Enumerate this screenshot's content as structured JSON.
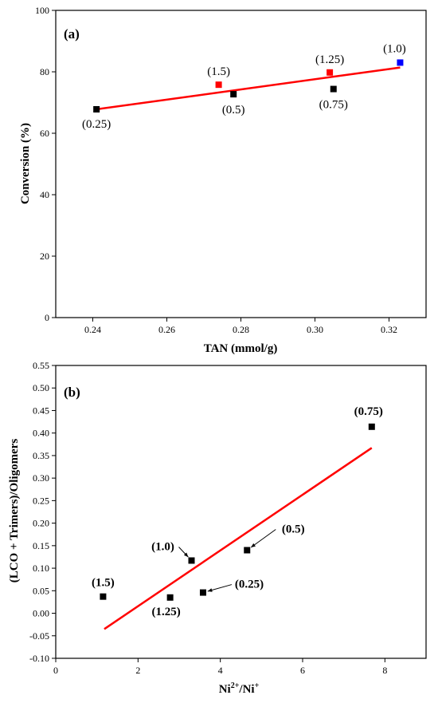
{
  "chart_data": [
    {
      "type": "scatter",
      "panel_label": "(a)",
      "xlabel": "TAN (mmol/g)",
      "ylabel": "Conversion (%)",
      "xlim": [
        0.23,
        0.33
      ],
      "ylim": [
        0,
        100
      ],
      "xticks": [
        "0.24",
        "0.26",
        "0.28",
        "0.30",
        "0.32"
      ],
      "yticks": [
        "0",
        "20",
        "40",
        "60",
        "80",
        "100"
      ],
      "points": [
        {
          "x": 0.241,
          "y": 67.8,
          "color": "#000000",
          "label": "(0.25)"
        },
        {
          "x": 0.274,
          "y": 75.8,
          "color": "#ff0000",
          "label": "(1.5)"
        },
        {
          "x": 0.278,
          "y": 72.7,
          "color": "#000000",
          "label": "(0.5)"
        },
        {
          "x": 0.304,
          "y": 79.8,
          "color": "#ff0000",
          "label": "(1.25)"
        },
        {
          "x": 0.305,
          "y": 74.4,
          "color": "#000000",
          "label": "(0.75)"
        },
        {
          "x": 0.323,
          "y": 83.0,
          "color": "#0000ff",
          "label": "(1.0)"
        }
      ],
      "fit_line": {
        "x": [
          0.241,
          0.323
        ],
        "y": [
          67.8,
          81.4
        ],
        "color": "#ff0000"
      }
    },
    {
      "type": "scatter",
      "panel_label": "(b)",
      "xlabel_main": "Ni",
      "xlabel_sup1": "2+",
      "xlabel_mid": "/Ni",
      "xlabel_sup2": "+",
      "ylabel": "(LCO + Trimers)/Oligomers",
      "xlim": [
        0,
        9
      ],
      "ylim": [
        -0.1,
        0.55
      ],
      "xticks": [
        "0",
        "2",
        "4",
        "6",
        "8"
      ],
      "yticks": [
        "-0.10",
        "-0.05",
        "0.00",
        "0.05",
        "0.10",
        "0.15",
        "0.20",
        "0.25",
        "0.30",
        "0.35",
        "0.40",
        "0.45",
        "0.50",
        "0.55"
      ],
      "points": [
        {
          "x": 1.15,
          "y": 0.037,
          "color": "#000000",
          "label": "(1.5)"
        },
        {
          "x": 2.78,
          "y": 0.035,
          "color": "#000000",
          "label": "(1.25)"
        },
        {
          "x": 3.3,
          "y": 0.117,
          "color": "#000000",
          "label": "(1.0)"
        },
        {
          "x": 3.58,
          "y": 0.046,
          "color": "#000000",
          "label": "(0.25)"
        },
        {
          "x": 4.65,
          "y": 0.14,
          "color": "#000000",
          "label": "(0.5)"
        },
        {
          "x": 7.68,
          "y": 0.414,
          "color": "#000000",
          "label": "(0.75)"
        }
      ],
      "fit_line": {
        "x": [
          1.18,
          7.68
        ],
        "y": [
          -0.035,
          0.367
        ],
        "color": "#ff0000"
      }
    }
  ]
}
